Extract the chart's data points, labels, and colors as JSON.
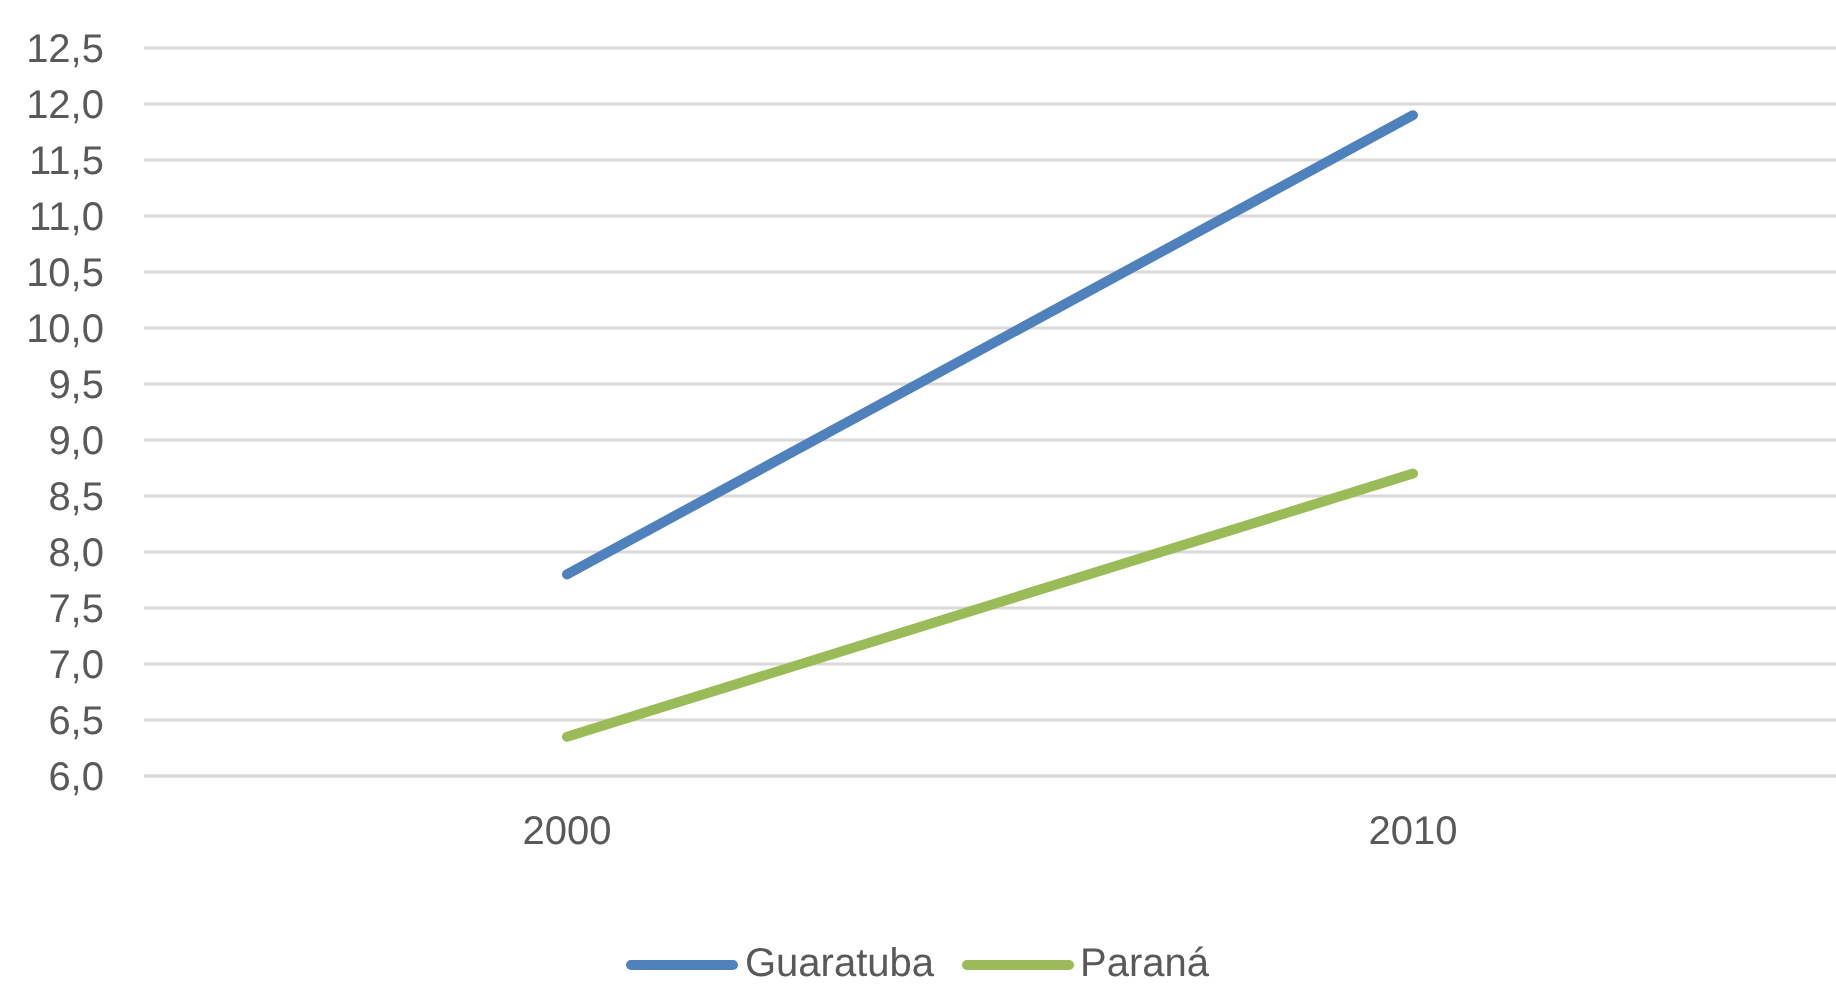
{
  "chart_data": {
    "type": "line",
    "categories": [
      "2000",
      "2010"
    ],
    "series": [
      {
        "name": "Guaratuba",
        "color": "#4f81bd",
        "values": [
          7.8,
          11.9
        ]
      },
      {
        "name": "Paraná",
        "color": "#9bbb59",
        "values": [
          6.35,
          8.7
        ]
      }
    ],
    "ylim": [
      6,
      12.5
    ],
    "yticks": [
      {
        "value": 6,
        "label": "6,0"
      },
      {
        "value": 6.5,
        "label": "6,5"
      },
      {
        "value": 7,
        "label": "7,0"
      },
      {
        "value": 7.5,
        "label": "7,5"
      },
      {
        "value": 8,
        "label": "8,0"
      },
      {
        "value": 8.5,
        "label": "8,5"
      },
      {
        "value": 9,
        "label": "9,0"
      },
      {
        "value": 9.5,
        "label": "9,5"
      },
      {
        "value": 10,
        "label": "10,0"
      },
      {
        "value": 10.5,
        "label": "10,5"
      },
      {
        "value": 11,
        "label": "11,0"
      },
      {
        "value": 11.5,
        "label": "11,5"
      },
      {
        "value": 12,
        "label": "12,0"
      },
      {
        "value": 12.5,
        "label": "12,5"
      }
    ],
    "grid": "y",
    "legend": "bottom",
    "marker": "none",
    "line_style": "solid"
  }
}
